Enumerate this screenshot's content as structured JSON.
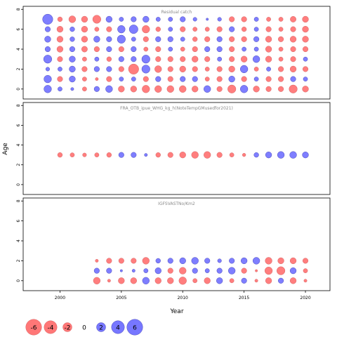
{
  "chart_data": {
    "type": "scatter",
    "xlabel": "Year",
    "ylabel": "Age",
    "x_ticks": [
      2000,
      2005,
      2010,
      2015,
      2020
    ],
    "y_ticks": [
      0,
      2,
      4,
      6,
      8
    ],
    "xlim": [
      1997,
      2022
    ],
    "ylim": [
      -1,
      8.3
    ],
    "positive_color": "#7777ff",
    "negative_color": "#ff7777",
    "bubble_edge_color": "#3333aa",
    "negative_edge_color": "#cc5555",
    "legend": [
      {
        "label": "-6",
        "value": -6
      },
      {
        "label": "-4",
        "value": -4
      },
      {
        "label": "-2",
        "value": -2
      },
      {
        "label": "0",
        "value": 0
      },
      {
        "label": "2",
        "value": 2
      },
      {
        "label": "4",
        "value": 4
      },
      {
        "label": "6",
        "value": 6
      }
    ],
    "panels": [
      {
        "title": "Residual catch",
        "years": [
          1999,
          2000,
          2001,
          2002,
          2003,
          2004,
          2005,
          2006,
          2007,
          2008,
          2009,
          2010,
          2011,
          2012,
          2013,
          2014,
          2015,
          2016,
          2017,
          2018,
          2019,
          2020
        ],
        "ages": [
          7,
          6,
          5,
          4,
          3,
          2,
          1,
          0
        ],
        "values": [
          [
            5.5,
            -1.2,
            -2.5,
            -2.0,
            -3.5,
            2.0,
            1.0,
            1.5,
            2.0,
            1.0,
            1.0,
            1.5,
            0.8,
            0.3,
            0.8,
            -1.5,
            -1.5,
            1.0,
            -1.0,
            -1.0,
            -1.8,
            -2.0
          ],
          [
            1.5,
            -2.0,
            1.2,
            -2.0,
            -1.0,
            -1.5,
            3.0,
            4.0,
            -3.0,
            -1.2,
            1.0,
            -1.5,
            -1.0,
            -1.0,
            -1.5,
            1.5,
            -1.2,
            1.0,
            -1.5,
            -1.0,
            -1.5,
            -2.0
          ],
          [
            2.0,
            -2.0,
            1.2,
            -2.0,
            2.0,
            1.5,
            3.5,
            1.0,
            -1.5,
            1.5,
            1.5,
            1.0,
            -1.2,
            -1.5,
            1.5,
            -1.5,
            -1.5,
            1.5,
            -2.0,
            -1.5,
            -2.0,
            -2.0
          ],
          [
            1.5,
            -2.0,
            1.5,
            -1.8,
            -1.5,
            1.5,
            -1.5,
            1.5,
            -1.0,
            -1.5,
            1.0,
            -1.0,
            -1.5,
            1.5,
            1.5,
            -1.5,
            1.0,
            1.0,
            -2.0,
            -1.0,
            -1.5,
            -1.5
          ],
          [
            3.5,
            -1.5,
            2.0,
            -1.0,
            1.0,
            -1.2,
            1.5,
            1.5,
            3.5,
            -1.5,
            -1.5,
            -1.5,
            -2.0,
            -1.5,
            1.0,
            -1.5,
            -2.0,
            2.5,
            -2.0,
            -1.0,
            -1.5,
            1.0
          ],
          [
            0.8,
            1.0,
            2.0,
            -1.5,
            1.5,
            1.5,
            -1.5,
            -5.5,
            3.5,
            -2.5,
            -1.5,
            -2.0,
            -1.5,
            -1.0,
            -1.5,
            -2.0,
            3.0,
            -1.0,
            1.0,
            -1.5,
            -2.0,
            -1.5
          ],
          [
            3.0,
            -1.5,
            2.0,
            -1.0,
            -0.5,
            -1.5,
            1.0,
            1.0,
            -1.5,
            1.5,
            -1.5,
            1.5,
            1.5,
            -1.0,
            -1.5,
            2.0,
            -1.5,
            1.0,
            -1.5,
            -1.5,
            1.5,
            1.0
          ],
          [
            3.0,
            1.0,
            0.5,
            -1.0,
            1.5,
            2.5,
            -2.0,
            -2.0,
            -3.0,
            -2.5,
            -2.5,
            -2.5,
            -2.0,
            2.5,
            -1.5,
            -3.5,
            3.0,
            -2.0,
            -1.5,
            -1.5,
            -3.5,
            -2.0
          ]
        ]
      },
      {
        "title": "FRA_OTB_ipue_WHG_kg_h(NoteTempGMusedfor2021)",
        "years": [
          2000,
          2001,
          2002,
          2003,
          2004,
          2005,
          2006,
          2007,
          2008,
          2009,
          2010,
          2011,
          2012,
          2013,
          2014,
          2015,
          2016,
          2017,
          2018,
          2019,
          2020
        ],
        "ages": [
          3
        ],
        "values": [
          [
            -1.2,
            -1.0,
            -0.8,
            -1.0,
            -1.2,
            1.5,
            1.5,
            0.5,
            -1.2,
            -1.5,
            -2.0,
            -2.5,
            -2.5,
            -1.5,
            -1.0,
            -0.6,
            1.2,
            2.0,
            2.5,
            2.5,
            2.0
          ]
        ]
      },
      {
        "title": "IGFSVASTNo/Km2",
        "years": [
          2003,
          2004,
          2005,
          2006,
          2007,
          2008,
          2009,
          2010,
          2011,
          2012,
          2013,
          2014,
          2015,
          2016,
          2017,
          2018,
          2019,
          2020
        ],
        "ages": [
          2,
          1,
          0
        ],
        "values": [
          [
            -0.5,
            -1.5,
            -1.5,
            -1.5,
            -2.5,
            1.2,
            1.5,
            2.0,
            2.5,
            1.5,
            0.8,
            1.5,
            2.0,
            2.5,
            -2.5,
            -2.0,
            -2.0,
            -1.5
          ],
          [
            1.5,
            1.5,
            0.3,
            0.5,
            1.0,
            2.0,
            -1.5,
            -2.5,
            1.5,
            1.0,
            1.5,
            2.5,
            -1.5,
            -0.3,
            -3.0,
            -3.5,
            2.0,
            -1.0
          ],
          [
            -2.5,
            -0.5,
            -2.0,
            -2.0,
            2.5,
            -2.0,
            -2.0,
            -3.0,
            -1.0,
            -2.0,
            2.0,
            -1.0,
            1.5,
            -0.5,
            -2.0,
            1.5,
            -2.0,
            -0.5
          ]
        ]
      }
    ]
  }
}
